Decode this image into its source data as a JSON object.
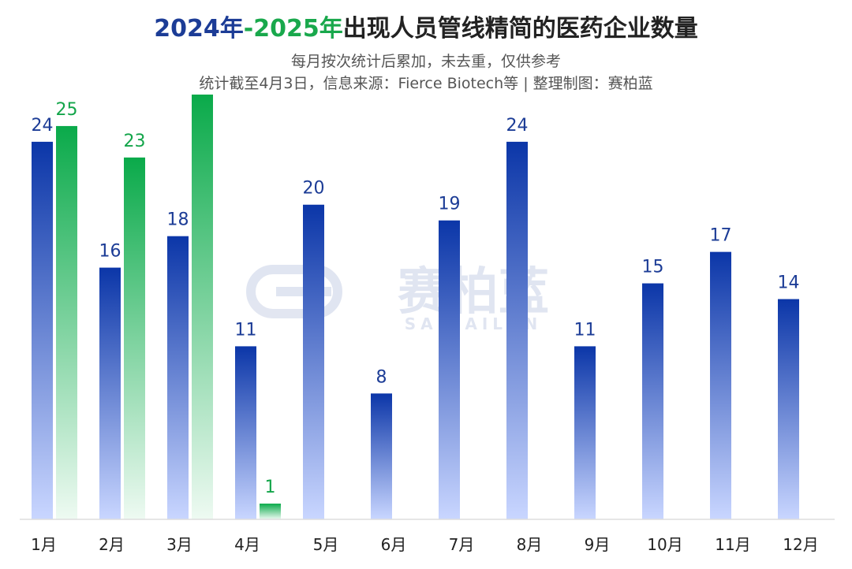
{
  "chart_data": {
    "type": "bar",
    "title_parts": {
      "year_a": "2024年",
      "dash": "-",
      "year_b": "2025年",
      "rest": "出现人员管线精简的医药企业数量"
    },
    "subtitle_1": "每月按次统计后累加，未去重，仅供参考",
    "subtitle_2": "统计截至4月3日，信息来源：Fierce Biotech等 | 整理制图：赛柏蓝",
    "categories": [
      "1月",
      "2月",
      "3月",
      "4月",
      "5月",
      "6月",
      "7月",
      "8月",
      "9月",
      "10月",
      "11月",
      "12月"
    ],
    "series": [
      {
        "name": "2024年",
        "values": [
          24,
          16,
          18,
          11,
          20,
          8,
          19,
          24,
          11,
          15,
          17,
          14
        ]
      },
      {
        "name": "2025年",
        "values": [
          25,
          23,
          27,
          1,
          null,
          null,
          null,
          null,
          null,
          null,
          null,
          null
        ]
      }
    ],
    "data_labels": [
      [
        "24",
        "16",
        "18",
        "11",
        "20",
        "8",
        "19",
        "24",
        "11",
        "15",
        "17",
        "14"
      ],
      [
        "25",
        "23",
        "",
        "1",
        "",
        "",
        "",
        "",
        "",
        "",
        "",
        ""
      ]
    ],
    "ylim": [
      0,
      27
    ],
    "grid": false,
    "legend": "none",
    "colors": {
      "series_2024_top": "#0b36a8",
      "series_2024_bottom": "#c9d6ff",
      "series_2025_top": "#0aaa4a",
      "series_2025_bottom": "#eefaf2",
      "label_2024": "#1c3c96",
      "label_2025": "#13a54a",
      "title_2024": "#1c3c96",
      "title_2025": "#19a84c",
      "title_rest": "#222222"
    }
  },
  "watermark": {
    "cn": "赛柏蓝",
    "en": "SAIBAILAN"
  }
}
